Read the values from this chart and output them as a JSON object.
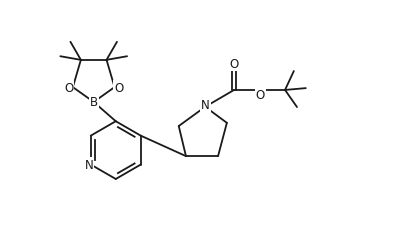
{
  "background_color": "#ffffff",
  "line_color": "#1a1a1a",
  "line_width": 1.3,
  "font_size": 8.5,
  "figsize": [
    4.04,
    2.26
  ],
  "dpi": 100,
  "xlim": [
    0,
    10
  ],
  "ylim": [
    0,
    5.6
  ]
}
